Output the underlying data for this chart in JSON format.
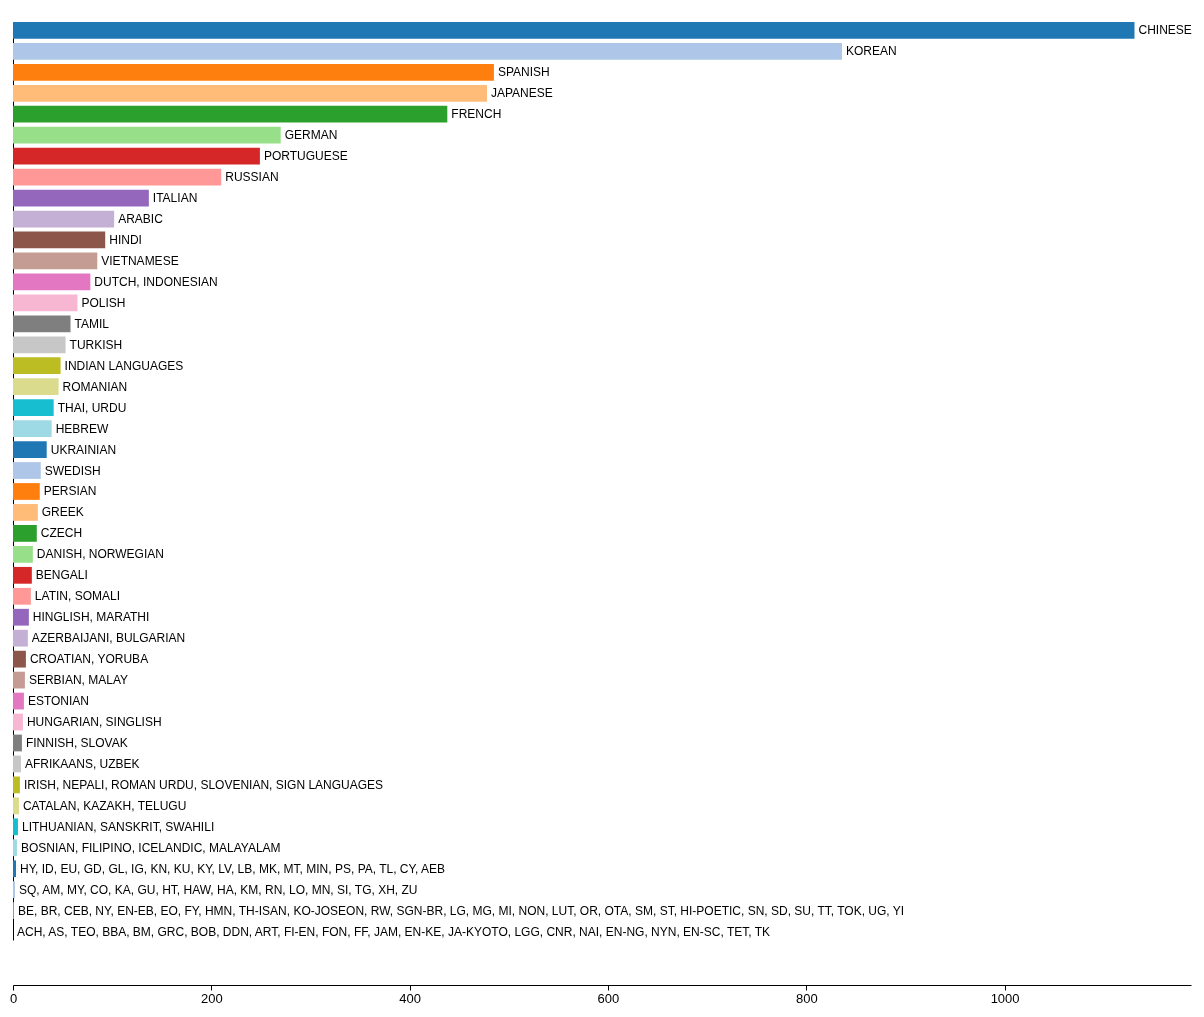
{
  "chart_data": {
    "type": "bar",
    "orientation": "horizontal",
    "categories": [
      "CHINESE",
      "KOREAN",
      "SPANISH",
      "JAPANESE",
      "FRENCH",
      "GERMAN",
      "PORTUGUESE",
      "RUSSIAN",
      "ITALIAN",
      "ARABIC",
      "HINDI",
      "VIETNAMESE",
      "DUTCH, INDONESIAN",
      "POLISH",
      "TAMIL",
      "TURKISH",
      "INDIAN LANGUAGES",
      "ROMANIAN",
      "THAI, URDU",
      "HEBREW",
      "UKRAINIAN",
      "SWEDISH",
      "PERSIAN",
      "GREEK",
      "CZECH",
      "DANISH, NORWEGIAN",
      "BENGALI",
      "LATIN, SOMALI",
      "HINGLISH, MARATHI",
      "AZERBAIJANI, BULGARIAN",
      "CROATIAN, YORUBA",
      "SERBIAN, MALAY",
      "ESTONIAN",
      "HUNGARIAN, SINGLISH",
      "FINNISH, SLOVAK",
      "AFRIKAANS, UZBEK",
      "IRISH, NEPALI, ROMAN URDU, SLOVENIAN, SIGN LANGUAGES",
      "CATALAN, KAZAKH, TELUGU",
      "LITHUANIAN, SANSKRIT, SWAHILI",
      "BOSNIAN, FILIPINO, ICELANDIC, MALAYALAM",
      "HY, ID, EU, GD, GL, IG, KN, KU, KY, LV, LB, MK, MT, MIN, PS, PA, TL, CY, AEB",
      "SQ, AM, MY, CO, KA, GU, HT, HAW, HA, KM, RN, LO, MN, SI, TG, XH, ZU",
      "BE, BR, CEB, NY, EN-EB, EO, FY, HMN, TH-ISAN, KO-JOSEON, RW, SGN-BR, LG, MG, MI, NON, LUT, OR, OTA, SM, ST, HI-POETIC, SN, SD, SU, TT, TOK, UG, YI",
      "ACH, AS, TEO, BBA, BM, GRC, BOB, DDN, ART, FI-EN, FON, FF, JAM, EN-KE, JA-KYOTO, LGG, CNR, NAI, EN-NG, NYN, EN-SC, TET, TK"
    ],
    "values": [
      1131,
      836,
      485,
      478,
      438,
      270,
      249,
      210,
      137,
      102,
      93,
      85,
      78,
      65,
      58,
      53,
      48,
      46,
      41,
      39,
      34,
      28,
      27,
      25,
      24,
      20,
      19,
      18,
      16,
      15,
      13,
      12,
      11,
      10,
      9,
      8,
      7,
      6,
      5,
      4,
      3,
      2,
      1,
      0
    ],
    "colors": [
      "#1f77b4",
      "#aec7e8",
      "#ff7f0e",
      "#ffbb78",
      "#2ca02c",
      "#98df8a",
      "#d62728",
      "#ff9896",
      "#9467bd",
      "#c5b0d5",
      "#8c564b",
      "#c49c94",
      "#e377c2",
      "#f7b6d2",
      "#7f7f7f",
      "#c7c7c7",
      "#bcbd22",
      "#dbdb8d",
      "#17becf",
      "#9edae5",
      "#1f77b4",
      "#aec7e8",
      "#ff7f0e",
      "#ffbb78",
      "#2ca02c",
      "#98df8a",
      "#d62728",
      "#ff9896",
      "#9467bd",
      "#c5b0d5",
      "#8c564b",
      "#c49c94",
      "#e377c2",
      "#f7b6d2",
      "#7f7f7f",
      "#c7c7c7",
      "#bcbd22",
      "#dbdb8d",
      "#17becf",
      "#9edae5",
      "#1f77b4",
      "#aec7e8",
      "#ff7f0e",
      "#ffbb78"
    ],
    "xlim": [
      0,
      1188
    ],
    "xticks": [
      0,
      200,
      400,
      600,
      800,
      1000
    ]
  }
}
